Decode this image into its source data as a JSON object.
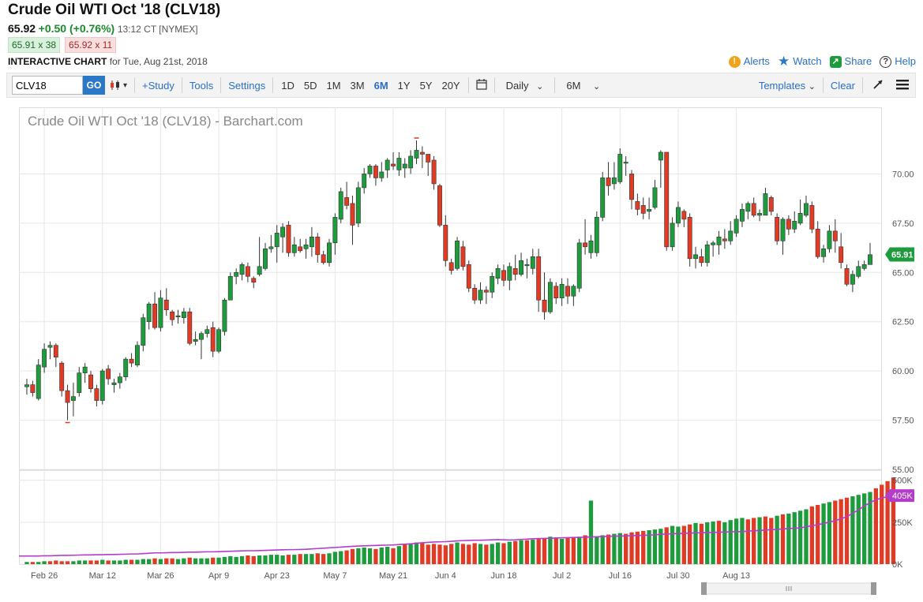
{
  "header": {
    "title": "Crude Oil WTI Oct '18 (CLV18)",
    "last": "65.92",
    "change": "+0.50 (+0.76%)",
    "time": "13:12 CT [NYMEX]",
    "bid": "65.91 x 38",
    "ask": "65.92 x 11",
    "chart_label": "INTERACTIVE CHART",
    "chart_date": "for Tue, Aug 21st, 2018",
    "actions": {
      "alerts": "Alerts",
      "watch": "Watch",
      "share": "Share",
      "help": "Help"
    }
  },
  "toolbar": {
    "symbol_value": "CLV18",
    "go_label": "GO",
    "study": "+Study",
    "tools": "Tools",
    "settings": "Settings",
    "ranges": [
      "1D",
      "5D",
      "1M",
      "3M",
      "6M",
      "1Y",
      "5Y",
      "20Y"
    ],
    "active_range": "6M",
    "interval": "Daily",
    "period": "6M",
    "templates": "Templates",
    "clear": "Clear"
  },
  "icons": [
    "chart-type-icon",
    "calendar-icon",
    "draw-icon",
    "menu-icon",
    "alert-icon",
    "star-icon",
    "share-icon",
    "help-icon"
  ],
  "colors": {
    "up": "#1e9b3c",
    "down": "#e03b24",
    "accent": "#2b78c7",
    "avg": "#b43ccc"
  },
  "chart_data": {
    "type": "candlestick",
    "title": "Crude Oil WTI Oct '18 (CLV18) - Barchart.com",
    "price_ticks": [
      "70.00",
      "67.50",
      "65.00",
      "62.50",
      "60.00",
      "57.50",
      "55.00"
    ],
    "price_range": [
      55.0,
      72.5
    ],
    "last_price_label": "65.91",
    "volume_ticks": [
      "500K",
      "250K",
      "0K"
    ],
    "volume_avg_label": "405K",
    "x_labels": [
      "Feb 26",
      "Mar 12",
      "Mar 26",
      "Apr 9",
      "Apr 23",
      "May 7",
      "May 21",
      "Jun 4",
      "Jun 18",
      "Jul 2",
      "Jul 16",
      "Jul 30",
      "Aug 13"
    ],
    "candles": [
      [
        59.2,
        59.3,
        59.6,
        58.8
      ],
      [
        59.3,
        58.9,
        59.5,
        58.7
      ],
      [
        58.6,
        60.3,
        60.6,
        58.5
      ],
      [
        60.2,
        61.1,
        61.4,
        59.9
      ],
      [
        61.2,
        61.3,
        61.5,
        60.6
      ],
      [
        61.3,
        60.7,
        61.4,
        60.2
      ],
      [
        60.4,
        59.0,
        60.5,
        58.7
      ],
      [
        59.0,
        58.4,
        59.3,
        57.5
      ],
      [
        58.5,
        58.7,
        59.4,
        57.7
      ],
      [
        58.9,
        59.9,
        60.2,
        58.7
      ],
      [
        59.9,
        60.2,
        60.4,
        59.4
      ],
      [
        59.8,
        59.1,
        60.0,
        58.9
      ],
      [
        59.1,
        58.5,
        59.3,
        58.2
      ],
      [
        58.5,
        60.0,
        60.1,
        58.3
      ],
      [
        60.1,
        59.6,
        60.3,
        59.3
      ],
      [
        59.3,
        59.4,
        59.6,
        58.9
      ],
      [
        59.4,
        59.7,
        59.9,
        59.1
      ],
      [
        59.7,
        60.6,
        60.7,
        59.5
      ],
      [
        60.6,
        60.4,
        60.9,
        60.2
      ],
      [
        60.3,
        61.3,
        61.5,
        60.2
      ],
      [
        61.3,
        62.7,
        62.9,
        61.0
      ],
      [
        62.5,
        63.4,
        63.5,
        62.1
      ],
      [
        63.4,
        62.2,
        64.0,
        62.1
      ],
      [
        62.2,
        63.7,
        64.1,
        62.0
      ],
      [
        63.6,
        63.1,
        64.2,
        62.8
      ],
      [
        63.0,
        62.6,
        63.1,
        62.3
      ],
      [
        62.8,
        62.8,
        63.1,
        62.4
      ],
      [
        62.7,
        63.0,
        63.2,
        62.4
      ],
      [
        63.0,
        61.4,
        63.2,
        61.3
      ],
      [
        61.5,
        61.6,
        62.0,
        61.3
      ],
      [
        61.6,
        61.9,
        62.0,
        60.6
      ],
      [
        61.9,
        62.1,
        62.3,
        61.7
      ],
      [
        62.2,
        61.0,
        62.5,
        60.7
      ],
      [
        61.0,
        62.1,
        62.2,
        60.9
      ],
      [
        62.0,
        63.6,
        63.7,
        61.8
      ],
      [
        63.6,
        64.8,
        65.0,
        63.6
      ],
      [
        64.8,
        65.0,
        65.2,
        64.4
      ],
      [
        64.9,
        65.4,
        65.5,
        64.6
      ],
      [
        65.3,
        64.8,
        65.5,
        64.5
      ],
      [
        64.7,
        64.5,
        64.8,
        64.2
      ],
      [
        64.9,
        65.3,
        66.8,
        64.8
      ],
      [
        65.2,
        66.2,
        66.5,
        65.1
      ],
      [
        66.2,
        66.3,
        66.9,
        66.0
      ],
      [
        66.3,
        67.0,
        67.4,
        65.5
      ],
      [
        66.8,
        67.3,
        67.5,
        66.0
      ],
      [
        67.4,
        66.0,
        67.6,
        65.8
      ],
      [
        66.0,
        66.4,
        66.8,
        65.8
      ],
      [
        66.3,
        66.1,
        66.7,
        66.0
      ],
      [
        66.2,
        66.4,
        66.7,
        65.7
      ],
      [
        66.3,
        66.8,
        67.3,
        65.8
      ],
      [
        66.8,
        65.9,
        67.0,
        65.5
      ],
      [
        65.9,
        65.5,
        66.1,
        65.4
      ],
      [
        65.5,
        66.5,
        66.7,
        65.3
      ],
      [
        66.5,
        67.8,
        68.0,
        65.9
      ],
      [
        67.7,
        69.1,
        69.3,
        67.5
      ],
      [
        68.8,
        68.4,
        69.6,
        68.2
      ],
      [
        68.5,
        67.4,
        68.9,
        66.4
      ],
      [
        67.5,
        69.3,
        69.6,
        67.3
      ],
      [
        69.3,
        70.0,
        70.3,
        69.0
      ],
      [
        70.0,
        70.4,
        70.5,
        69.8
      ],
      [
        70.4,
        69.8,
        70.5,
        69.4
      ],
      [
        69.8,
        70.1,
        70.6,
        69.6
      ],
      [
        70.2,
        70.7,
        70.8,
        69.8
      ],
      [
        70.5,
        70.4,
        71.1,
        70.2
      ],
      [
        70.2,
        70.8,
        71.1,
        69.9
      ],
      [
        70.3,
        70.5,
        70.8,
        69.8
      ],
      [
        70.3,
        70.9,
        71.2,
        70.0
      ],
      [
        70.8,
        71.2,
        71.7,
        70.5
      ],
      [
        71.1,
        71.0,
        71.4,
        70.3
      ],
      [
        71.0,
        70.6,
        71.0,
        69.9
      ],
      [
        70.7,
        69.5,
        70.9,
        69.2
      ],
      [
        69.4,
        67.4,
        69.5,
        67.3
      ],
      [
        67.4,
        65.6,
        67.9,
        65.3
      ],
      [
        65.5,
        65.1,
        65.7,
        64.9
      ],
      [
        65.2,
        66.6,
        66.8,
        65.1
      ],
      [
        66.3,
        65.3,
        66.6,
        65.1
      ],
      [
        65.4,
        64.2,
        65.6,
        64.0
      ],
      [
        64.2,
        63.6,
        64.4,
        63.4
      ],
      [
        63.6,
        64.1,
        64.5,
        63.4
      ],
      [
        64.1,
        64.0,
        64.3,
        63.4
      ],
      [
        64.0,
        64.8,
        65.0,
        63.7
      ],
      [
        64.7,
        65.2,
        65.4,
        64.4
      ],
      [
        65.1,
        64.6,
        65.4,
        64.3
      ],
      [
        64.6,
        65.3,
        65.5,
        64.1
      ],
      [
        65.2,
        64.9,
        65.9,
        64.6
      ],
      [
        64.9,
        65.6,
        66.0,
        64.8
      ],
      [
        65.4,
        65.4,
        65.7,
        64.7
      ],
      [
        65.2,
        65.8,
        66.2,
        64.9
      ],
      [
        65.8,
        63.6,
        66.2,
        63.0
      ],
      [
        63.6,
        63.0,
        65.0,
        62.6
      ],
      [
        63.0,
        64.5,
        64.7,
        62.9
      ],
      [
        64.3,
        63.7,
        64.5,
        63.4
      ],
      [
        63.7,
        64.4,
        64.7,
        63.3
      ],
      [
        64.3,
        63.8,
        64.7,
        63.4
      ],
      [
        63.8,
        64.3,
        64.4,
        63.3
      ],
      [
        64.2,
        66.5,
        66.7,
        64.0
      ],
      [
        66.5,
        66.3,
        67.7,
        65.9
      ],
      [
        66.0,
        66.6,
        66.9,
        65.7
      ],
      [
        66.0,
        67.8,
        68.1,
        65.8
      ],
      [
        67.8,
        69.8,
        70.1,
        67.6
      ],
      [
        69.8,
        69.4,
        70.6,
        68.9
      ],
      [
        69.5,
        69.8,
        70.6,
        69.2
      ],
      [
        69.6,
        71.0,
        71.3,
        69.5
      ],
      [
        70.6,
        70.6,
        70.9,
        69.9
      ],
      [
        70.0,
        68.7,
        70.2,
        68.2
      ],
      [
        68.6,
        68.2,
        69.0,
        67.9
      ],
      [
        68.4,
        68.0,
        68.8,
        67.7
      ],
      [
        68.1,
        68.2,
        68.8,
        67.7
      ],
      [
        68.3,
        69.3,
        69.7,
        68.2
      ],
      [
        70.7,
        71.1,
        71.2,
        69.3
      ],
      [
        71.1,
        66.3,
        71.1,
        66.1
      ],
      [
        66.3,
        67.5,
        67.8,
        66.1
      ],
      [
        67.5,
        68.3,
        68.6,
        67.3
      ],
      [
        68.1,
        67.7,
        68.2,
        67.3
      ],
      [
        67.8,
        65.7,
        68.0,
        65.3
      ],
      [
        65.7,
        65.9,
        66.3,
        65.2
      ],
      [
        65.8,
        65.5,
        66.2,
        65.3
      ],
      [
        65.5,
        66.4,
        66.6,
        65.3
      ],
      [
        66.4,
        66.5,
        66.6,
        65.8
      ],
      [
        66.4,
        66.8,
        67.1,
        65.9
      ],
      [
        66.7,
        66.6,
        67.2,
        66.2
      ],
      [
        66.6,
        67.1,
        67.6,
        66.4
      ],
      [
        67.0,
        67.7,
        67.9,
        66.8
      ],
      [
        67.6,
        68.2,
        68.5,
        67.3
      ],
      [
        68.1,
        68.5,
        68.6,
        67.7
      ],
      [
        68.5,
        67.9,
        68.8,
        67.8
      ],
      [
        67.9,
        68.0,
        68.2,
        67.6
      ],
      [
        67.9,
        69.0,
        69.3,
        67.9
      ],
      [
        68.8,
        68.1,
        68.9,
        67.9
      ],
      [
        67.8,
        66.6,
        68.0,
        66.4
      ],
      [
        66.6,
        67.7,
        67.8,
        65.9
      ],
      [
        67.7,
        67.2,
        67.9,
        66.9
      ],
      [
        67.2,
        67.6,
        68.1,
        67.0
      ],
      [
        67.5,
        68.0,
        68.7,
        67.4
      ],
      [
        67.9,
        68.5,
        68.9,
        67.8
      ],
      [
        68.4,
        67.2,
        68.6,
        67.0
      ],
      [
        67.2,
        65.8,
        67.6,
        65.7
      ],
      [
        65.8,
        66.2,
        66.4,
        65.5
      ],
      [
        66.2,
        67.1,
        67.4,
        66.0
      ],
      [
        67.1,
        66.6,
        67.7,
        66.0
      ],
      [
        66.3,
        65.5,
        67.0,
        65.2
      ],
      [
        65.2,
        64.4,
        65.4,
        64.3
      ],
      [
        64.4,
        64.9,
        65.1,
        64.0
      ],
      [
        64.8,
        65.3,
        65.6,
        64.7
      ],
      [
        65.2,
        65.4,
        65.6,
        65.1
      ],
      [
        65.4,
        65.9,
        66.5,
        65.4
      ]
    ],
    "volume": [
      3,
      3,
      3,
      4,
      4,
      5,
      4,
      4,
      4,
      5,
      5,
      5,
      5,
      6,
      5,
      5,
      5,
      6,
      6,
      6,
      7,
      7,
      8,
      7,
      8,
      8,
      7,
      8,
      9,
      8,
      8,
      8,
      9,
      9,
      10,
      11,
      10,
      11,
      12,
      11,
      12,
      12,
      13,
      13,
      12,
      13,
      13,
      14,
      14,
      14,
      15,
      14,
      15,
      17,
      18,
      19,
      21,
      22,
      23,
      22,
      21,
      23,
      24,
      22,
      25,
      27,
      29,
      30,
      29,
      27,
      28,
      27,
      26,
      28,
      30,
      28,
      27,
      29,
      28,
      27,
      28,
      30,
      29,
      31,
      32,
      33,
      33,
      34,
      35,
      36,
      38,
      37,
      35,
      36,
      37,
      38,
      40,
      88,
      38,
      40,
      41,
      42,
      43,
      42,
      44,
      45,
      46,
      47,
      48,
      49,
      51,
      53,
      52,
      53,
      55,
      57,
      56,
      58,
      59,
      60,
      58,
      61,
      63,
      64,
      62,
      64,
      65,
      66,
      64,
      67,
      69,
      70,
      72,
      74,
      76,
      80,
      82,
      84,
      86,
      88,
      90,
      92,
      94,
      96,
      98,
      100,
      105,
      110,
      115,
      120
    ],
    "volume_colors": [
      "up",
      "down",
      "up",
      "up",
      "down",
      "down",
      "down",
      "down",
      "up",
      "up",
      "up",
      "down",
      "down",
      "up",
      "down",
      "up",
      "up",
      "up",
      "down",
      "up",
      "up",
      "up",
      "down",
      "up",
      "down",
      "down",
      "up",
      "up",
      "down",
      "up",
      "up",
      "up",
      "down",
      "up",
      "up",
      "up",
      "up",
      "up",
      "down",
      "down",
      "up",
      "up",
      "up",
      "up",
      "up",
      "down",
      "up",
      "down",
      "up",
      "up",
      "down",
      "down",
      "up",
      "up",
      "up",
      "down",
      "down",
      "up",
      "up",
      "up",
      "down",
      "up",
      "up",
      "down",
      "up",
      "down",
      "up",
      "up",
      "down",
      "down",
      "down",
      "down",
      "down",
      "down",
      "up",
      "down",
      "down",
      "down",
      "up",
      "down",
      "up",
      "up",
      "down",
      "up",
      "down",
      "up",
      "down",
      "up",
      "down",
      "down",
      "up",
      "down",
      "up",
      "down",
      "down",
      "up",
      "down",
      "up",
      "up",
      "up",
      "down",
      "up",
      "up",
      "down",
      "down",
      "down",
      "down",
      "up",
      "up",
      "up",
      "down",
      "up",
      "up",
      "down",
      "down",
      "up",
      "down",
      "up",
      "up",
      "down",
      "up",
      "up",
      "up",
      "up",
      "down",
      "down",
      "up",
      "down",
      "down",
      "up",
      "down",
      "up",
      "up",
      "up",
      "up",
      "down",
      "down",
      "up",
      "up",
      "down",
      "down",
      "down",
      "up",
      "up",
      "up",
      "up"
    ],
    "volume_avg": [
      45,
      45,
      45,
      46,
      46,
      47,
      48,
      48,
      49,
      50,
      51,
      51,
      52,
      52,
      53,
      53,
      54,
      55,
      56,
      56,
      58,
      60,
      62,
      62,
      63,
      64,
      64,
      65,
      66,
      66,
      67,
      68,
      68,
      69,
      70,
      71,
      72,
      73,
      74,
      74,
      75,
      76,
      77,
      78,
      79,
      80,
      80,
      81,
      82,
      84,
      86,
      88,
      90,
      92,
      94,
      96,
      98,
      100,
      101,
      102,
      103,
      104,
      105,
      106,
      108,
      110,
      112,
      115,
      118,
      120,
      122,
      123,
      124,
      126,
      128,
      130,
      131,
      132,
      132,
      133,
      134,
      135,
      134,
      133,
      134,
      136,
      138,
      140,
      141,
      142,
      143,
      144,
      145,
      146,
      147,
      148,
      149,
      150,
      151,
      152,
      153,
      154,
      155,
      156,
      157,
      158,
      159,
      160,
      162,
      164,
      166,
      168,
      169,
      170,
      171,
      172,
      173,
      174,
      175,
      176,
      177,
      178,
      179,
      180,
      182,
      184,
      186,
      188,
      190,
      192,
      194,
      196,
      198,
      200,
      206,
      212,
      218,
      224,
      232,
      240,
      250,
      262,
      280,
      300,
      320,
      340,
      355,
      365,
      372,
      378
    ]
  }
}
